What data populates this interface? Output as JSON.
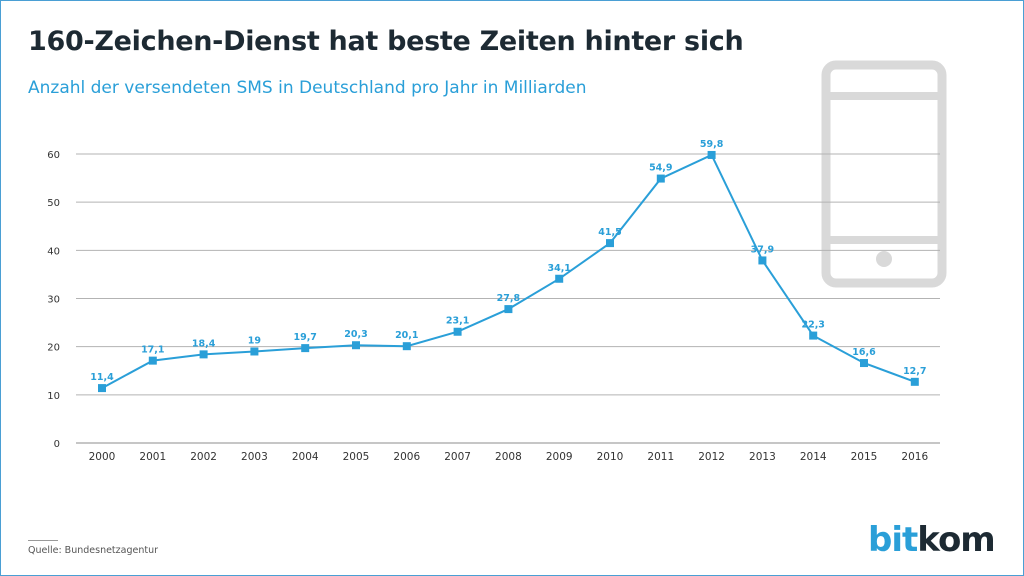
{
  "header": {
    "title": "160-Zeichen-Dienst hat beste Zeiten hinter sich",
    "subtitle": "Anzahl der versendeten SMS in Deutschland pro Jahr in Milliarden"
  },
  "footer": {
    "source": "Quelle: Bundesnetzagentur",
    "logo_part1": "bit",
    "logo_part2": "kom"
  },
  "colors": {
    "line": "#2a9fd8",
    "label": "#2a9fd8",
    "grid": "#b3b3b3",
    "axis_text": "#333333",
    "phone_icon": "#d9d9d9"
  },
  "decoration": {
    "icon": "smartphone-icon"
  },
  "chart_data": {
    "type": "line",
    "title": "160-Zeichen-Dienst hat beste Zeiten hinter sich",
    "subtitle": "Anzahl der versendeten SMS in Deutschland pro Jahr in Milliarden",
    "xlabel": "",
    "ylabel": "",
    "categories": [
      "2000",
      "2001",
      "2002",
      "2003",
      "2004",
      "2005",
      "2006",
      "2007",
      "2008",
      "2009",
      "2010",
      "2011",
      "2012",
      "2013",
      "2014",
      "2015",
      "2016"
    ],
    "series": [
      {
        "values": [
          11.4,
          17.1,
          18.4,
          19,
          19.7,
          20.3,
          20.1,
          23.1,
          27.8,
          34.1,
          41.5,
          54.9,
          59.8,
          37.9,
          22.3,
          16.6,
          12.7
        ],
        "labels": [
          "11,4",
          "17,1",
          "18,4",
          "19",
          "19,7",
          "20,3",
          "20,1",
          "23,1",
          "27,8",
          "34,1",
          "41,5",
          "54,9",
          "59,8",
          "37,9",
          "22,3",
          "16,6",
          "12,7"
        ],
        "marker": "square"
      }
    ],
    "yticks": [
      0,
      10,
      20,
      30,
      40,
      50,
      60
    ],
    "ylim": [
      0,
      60
    ],
    "grid": true,
    "legend": "none"
  }
}
